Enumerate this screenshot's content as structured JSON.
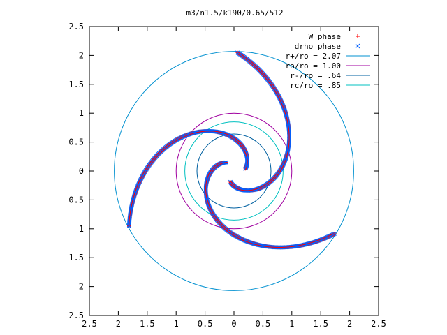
{
  "chart_data": {
    "type": "scatter",
    "title": "m3/n1.5/k190/0.65/512",
    "xlabel": "",
    "ylabel": "",
    "xlim": [
      -2.5,
      2.5
    ],
    "ylim": [
      -2.5,
      2.5
    ],
    "x_ticks": [
      -2.5,
      -2,
      -1.5,
      -1,
      -0.5,
      0,
      0.5,
      1,
      1.5,
      2,
      2.5
    ],
    "y_ticks": [
      -2.5,
      -2,
      -1.5,
      -1,
      -0.5,
      0,
      0.5,
      1,
      1.5,
      2,
      2.5
    ],
    "x_tick_labels": [
      "2.5",
      "2",
      "1.5",
      "1",
      "0.5",
      "0",
      "0.5",
      "1",
      "1.5",
      "2",
      "2.5"
    ],
    "y_tick_labels": [
      "2.5",
      "2",
      "1.5",
      "1",
      "0.5",
      "0",
      "0.5",
      "1",
      "1.5",
      "2",
      "2.5"
    ],
    "grid": false,
    "legend_position": "top-right",
    "series": [
      {
        "name": "W phase",
        "marker": "+",
        "color": "#ff0000",
        "points": []
      },
      {
        "name": "drho phase",
        "marker": "x",
        "color": "#0060ff",
        "points": []
      }
    ],
    "circles": [
      {
        "name": "r+/ro = 2.07",
        "radius": 2.07,
        "color": "#0090d0"
      },
      {
        "name": "ro/ro = 1.00",
        "radius": 1.0,
        "color": "#a000a0"
      },
      {
        "name": "r-/ro = .64",
        "radius": 0.64,
        "color": "#0060a0"
      },
      {
        "name": "rc/ro = .85",
        "radius": 0.85,
        "color": "#00c0c0"
      }
    ],
    "arm_style": {
      "pattern_colors": [
        "#9a3a7a",
        "#3388ee"
      ],
      "points_per_arm": 240
    },
    "arms": [
      {
        "r0": 0.2,
        "r1": 2.05,
        "theta0": 0.2,
        "phase": 0,
        "tilt": 0.8
      },
      {
        "r0": 0.2,
        "r1": 2.05,
        "theta0": 2.3,
        "phase": 0,
        "tilt": 0.8
      },
      {
        "r0": 0.2,
        "r1": 2.05,
        "theta0": 4.4,
        "phase": 0,
        "tilt": 0.8
      }
    ]
  }
}
